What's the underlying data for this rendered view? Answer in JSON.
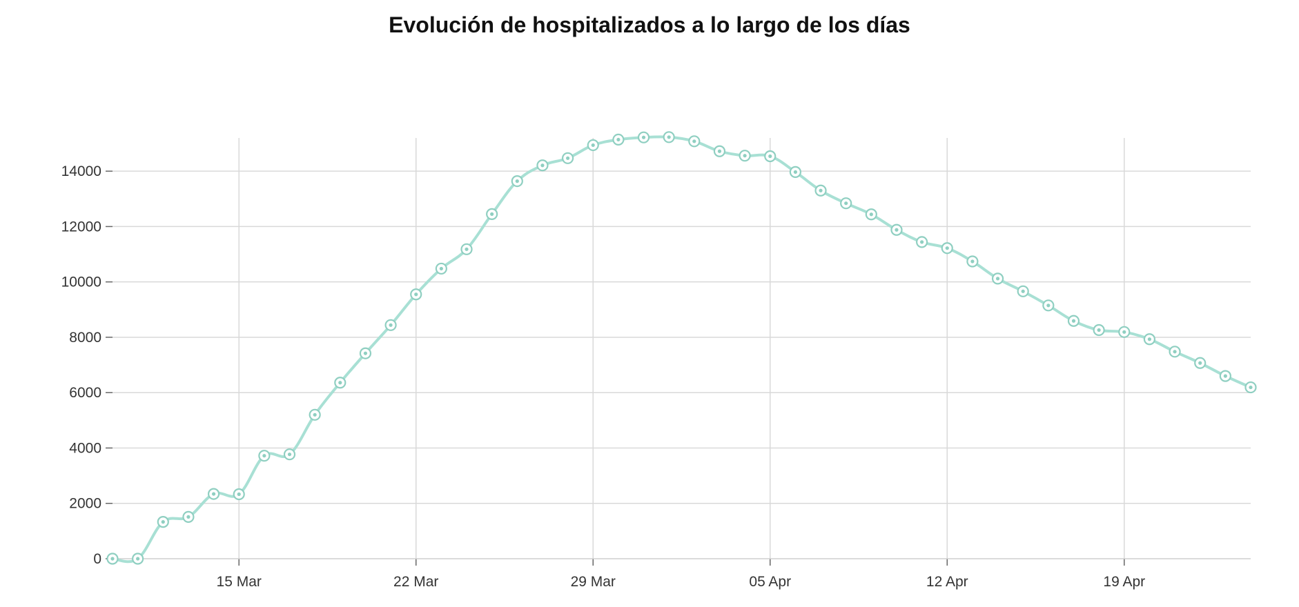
{
  "chart_data": {
    "type": "line",
    "title": "Evolución de hospitalizados a lo largo de los días",
    "xlabel": "",
    "ylabel": "",
    "x_start_date": "2020-03-10",
    "x_tick_labels": [
      "15 Mar",
      "22 Mar",
      "29 Mar",
      "05 Apr",
      "12 Apr",
      "19 Apr"
    ],
    "y_tick_labels": [
      "0",
      "2000",
      "4000",
      "6000",
      "8000",
      "10000",
      "12000",
      "14000"
    ],
    "xlim": [
      "2020-03-10",
      "2020-04-24"
    ],
    "ylim": [
      0,
      15200
    ],
    "grid": true,
    "line_color": "#a8e0d4",
    "marker_color": "#8fcfc1",
    "x": [
      "2020-03-10",
      "2020-03-11",
      "2020-03-12",
      "2020-03-13",
      "2020-03-14",
      "2020-03-15",
      "2020-03-16",
      "2020-03-17",
      "2020-03-18",
      "2020-03-19",
      "2020-03-20",
      "2020-03-21",
      "2020-03-22",
      "2020-03-23",
      "2020-03-24",
      "2020-03-25",
      "2020-03-26",
      "2020-03-27",
      "2020-03-28",
      "2020-03-29",
      "2020-03-30",
      "2020-03-31",
      "2020-04-01",
      "2020-04-02",
      "2020-04-03",
      "2020-04-04",
      "2020-04-05",
      "2020-04-06",
      "2020-04-07",
      "2020-04-08",
      "2020-04-09",
      "2020-04-10",
      "2020-04-11",
      "2020-04-12",
      "2020-04-13",
      "2020-04-14",
      "2020-04-15",
      "2020-04-16",
      "2020-04-17",
      "2020-04-18",
      "2020-04-19",
      "2020-04-20",
      "2020-04-21",
      "2020-04-22",
      "2020-04-23",
      "2020-04-24"
    ],
    "series": [
      {
        "values": [
          0,
          0,
          1330,
          1510,
          2340,
          2330,
          3720,
          3770,
          5200,
          6360,
          7420,
          8440,
          9550,
          10480,
          11180,
          12450,
          13640,
          14210,
          14470,
          14940,
          15140,
          15220,
          15230,
          15080,
          14720,
          14560,
          14540,
          13970,
          13300,
          12840,
          12440,
          11880,
          11440,
          11220,
          10740,
          10120,
          9660,
          9150,
          8590,
          8260,
          8190,
          7930,
          7480,
          7070,
          6600,
          6190
        ]
      }
    ]
  }
}
